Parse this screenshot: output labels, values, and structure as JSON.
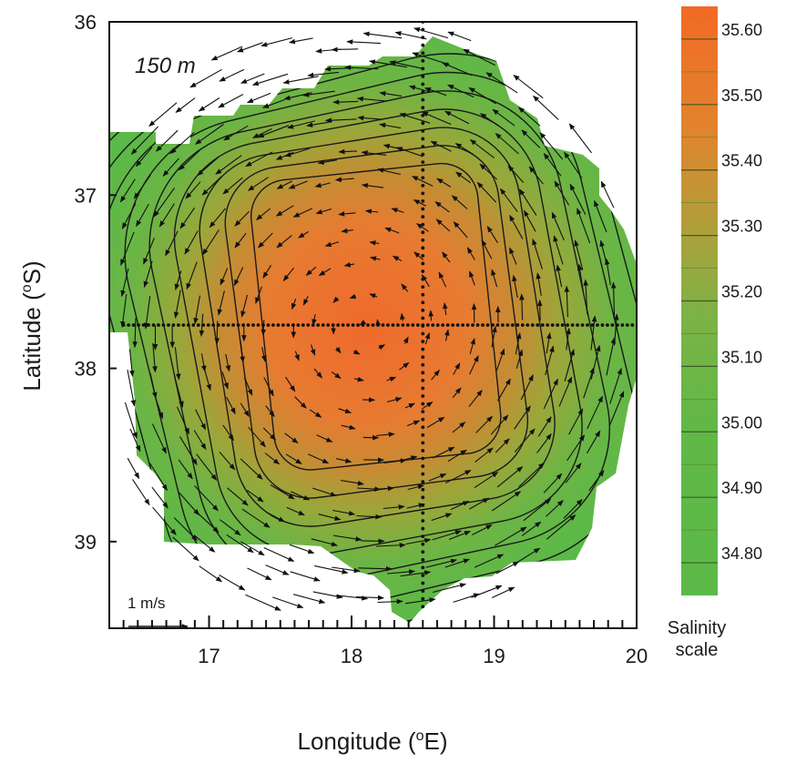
{
  "chart_data": {
    "type": "heatmap",
    "subtype": "contour-map-with-velocity-vectors",
    "annotation": "150 m",
    "xlabel": {
      "prefix": "Longitude (",
      "sup": "o",
      "suffix": "E)"
    },
    "ylabel": {
      "prefix": "Latitude (",
      "sup": "o",
      "suffix": "S)"
    },
    "xlim": [
      16.3,
      20.0
    ],
    "ylim": [
      36.0,
      39.5
    ],
    "y_inverted": true,
    "x_ticks": [
      "17",
      "18",
      "19",
      "20"
    ],
    "x_tick_values": [
      17,
      18,
      19,
      20
    ],
    "y_ticks": [
      "36",
      "37",
      "38",
      "39"
    ],
    "y_tick_values": [
      36,
      37,
      38,
      39
    ],
    "minor_x_step": 0.1,
    "colorbar": {
      "title": [
        "Salinity",
        "scale"
      ],
      "labels": [
        "35.60",
        "35.50",
        "35.40",
        "35.30",
        "35.20",
        "35.10",
        "35.00",
        "34.90",
        "34.80"
      ],
      "levels": [
        35.6,
        35.5,
        35.4,
        35.3,
        35.2,
        35.1,
        35.0,
        34.9,
        34.8
      ],
      "range": [
        34.75,
        35.65
      ],
      "low_color": "#5bb947",
      "mid_color": "#9aa73a",
      "high_color": "#ef6a2c"
    },
    "eddy": {
      "kind": "anticyclonic warm-core eddy",
      "center_lon": 18.1,
      "center_lat": 37.75,
      "peak_salinity": 35.6,
      "edge_salinity": 34.8
    },
    "salinity_contours": [
      35.6,
      35.55,
      35.5,
      35.45,
      35.4,
      35.35,
      35.3,
      35.25,
      35.2
    ],
    "ship_tracks": [
      {
        "orientation": "meridional",
        "lon": 18.5,
        "lat_range": [
          36.0,
          39.4
        ]
      },
      {
        "orientation": "zonal",
        "lat": 37.75,
        "lon_range": [
          16.4,
          20.0
        ]
      }
    ],
    "vector_scale": {
      "label": "1 m/s",
      "speed_ms": 1.0
    }
  }
}
